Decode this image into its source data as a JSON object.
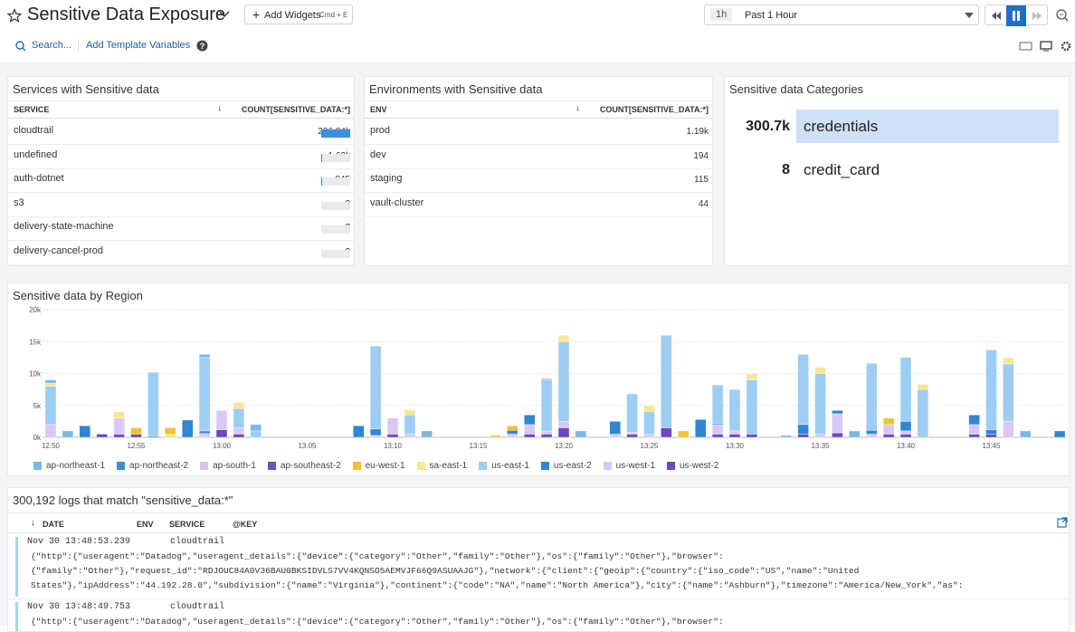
{
  "header": {
    "title": "Sensitive Data Exposure",
    "add_widgets": "Add Widgets",
    "shortcut": "Cmd + E",
    "time_badge": "1h",
    "time_range": "Past 1 Hour"
  },
  "toolbar": {
    "search": "Search...",
    "template": "Add Template Variables"
  },
  "services": {
    "title": "Services with Sensitive data",
    "columns": [
      "SERVICE",
      "COUNT[SENSITIVE_DATA:*]"
    ],
    "bar_color": "#3d8fe0",
    "rows": [
      {
        "name": "cloudtrail",
        "count": 296840,
        "count_label": "296.84k"
      },
      {
        "name": "undefined",
        "count": 1620,
        "count_label": "1.62k"
      },
      {
        "name": "auth-dotnet",
        "count": 845
      },
      {
        "name": "s3",
        "count": 3
      },
      {
        "name": "delivery-state-machine",
        "count": 2
      },
      {
        "name": "delivery-cancel-prod",
        "count": 2
      }
    ]
  },
  "environments": {
    "title": "Environments with Sensitive data",
    "columns": [
      "ENV",
      "COUNT[SENSITIVE_DATA:*]"
    ],
    "rows": [
      {
        "name": "prod",
        "count": 1190,
        "count_label": "1.19k"
      },
      {
        "name": "dev",
        "count": 194
      },
      {
        "name": "staging",
        "count": 115
      },
      {
        "name": "vault-cluster",
        "count": 44
      }
    ]
  },
  "categories": {
    "title": "Sensitive data Categories",
    "rows": [
      {
        "name": "credentials",
        "count": 300700,
        "count_label": "300.7k"
      },
      {
        "name": "credit_card",
        "count": 8
      }
    ]
  },
  "region_chart": {
    "type": "bar",
    "stacked": true,
    "title": "Sensitive data by Region",
    "grid": true,
    "ylim": [
      0,
      20000
    ],
    "yticks": [
      {
        "value": 0,
        "label": "0k"
      },
      {
        "value": 5000,
        "label": "5k"
      },
      {
        "value": 10000,
        "label": "10k"
      },
      {
        "value": 15000,
        "label": "15k"
      },
      {
        "value": 20000,
        "label": "20k"
      }
    ],
    "categories": [
      "12:50",
      null,
      null,
      null,
      null,
      "12:55",
      null,
      null,
      null,
      null,
      "13:00",
      null,
      null,
      null,
      null,
      "13:05",
      null,
      null,
      null,
      null,
      "13:10",
      null,
      null,
      null,
      null,
      "13:15",
      null,
      null,
      null,
      null,
      "13:20",
      null,
      null,
      null,
      null,
      "13:25",
      null,
      null,
      null,
      null,
      "13:30",
      null,
      null,
      null,
      null,
      "13:35",
      null,
      null,
      null,
      null,
      "13:40",
      null,
      null,
      null,
      null,
      "13:45",
      null,
      null,
      null,
      null
    ],
    "series": [
      {
        "name": "ap-northeast-1",
        "color": "#7cb6e8",
        "values": [
          500,
          1000,
          0,
          0,
          0,
          0,
          0,
          0,
          0,
          500,
          0,
          0,
          1000,
          0,
          0,
          0,
          0,
          0,
          0,
          0,
          0,
          0,
          1000,
          0,
          0,
          0,
          0,
          0,
          0,
          200,
          0,
          1000,
          0,
          0,
          0,
          0,
          0,
          0,
          0,
          0,
          0,
          0,
          0,
          300,
          0,
          0,
          0,
          1000,
          0,
          0,
          0,
          0,
          0,
          0,
          0,
          0,
          0,
          1000,
          0,
          0
        ]
      },
      {
        "name": "ap-northeast-2",
        "color": "#3b8ed6",
        "values": [
          0,
          0,
          0,
          0,
          0,
          0,
          0,
          0,
          0,
          0,
          0,
          0,
          0,
          0,
          0,
          0,
          0,
          0,
          0,
          0,
          0,
          0,
          0,
          0,
          0,
          0,
          0,
          0,
          0,
          0,
          0,
          0,
          0,
          0,
          0,
          0,
          0,
          0,
          0,
          0,
          0,
          0,
          0,
          0,
          0,
          0,
          0,
          0,
          0,
          0,
          0,
          0,
          0,
          0,
          0,
          0,
          0,
          0,
          0,
          0
        ]
      },
      {
        "name": "ap-south-1",
        "color": "#d6c3f2",
        "values": [
          0,
          0,
          0,
          0,
          0,
          0,
          0,
          0,
          0,
          0,
          0,
          0,
          0,
          0,
          0,
          0,
          0,
          0,
          0,
          0,
          0,
          0,
          0,
          0,
          0,
          0,
          0,
          0,
          0,
          0,
          0,
          0,
          0,
          0,
          0,
          0,
          0,
          0,
          0,
          0,
          0,
          0,
          0,
          0,
          0,
          0,
          0,
          0,
          0,
          0,
          0,
          0,
          0,
          0,
          0,
          0,
          0,
          0,
          0,
          0
        ]
      },
      {
        "name": "ap-southeast-2",
        "color": "#7050c8",
        "values": [
          0,
          0,
          0,
          0,
          0,
          0,
          0,
          0,
          0,
          0,
          0,
          0,
          0,
          0,
          0,
          0,
          0,
          0,
          0,
          0,
          0,
          0,
          0,
          0,
          0,
          0,
          0,
          0,
          0,
          0,
          0,
          0,
          0,
          0,
          0,
          0,
          0,
          0,
          0,
          0,
          0,
          0,
          0,
          0,
          0,
          0,
          0,
          0,
          0,
          0,
          0,
          0,
          0,
          0,
          0,
          0,
          0,
          0,
          0,
          0
        ]
      },
      {
        "name": "eu-west-1",
        "color": "#f2c230",
        "values": [
          0,
          0,
          0,
          0,
          0,
          1000,
          0,
          1000,
          0,
          0,
          0,
          0,
          0,
          0,
          0,
          0,
          0,
          0,
          0,
          0,
          0,
          0,
          0,
          0,
          0,
          0,
          300,
          700,
          0,
          0,
          0,
          0,
          0,
          0,
          0,
          0,
          0,
          1000,
          0,
          0,
          0,
          0,
          0,
          0,
          0,
          0,
          0,
          0,
          0,
          1000,
          0,
          0,
          0,
          0,
          0,
          0,
          0,
          0,
          0,
          0
        ]
      },
      {
        "name": "sa-east-1",
        "color": "#f8e690",
        "values": [
          500,
          0,
          0,
          0,
          1000,
          0,
          0,
          500,
          0,
          0,
          0,
          1000,
          0,
          0,
          0,
          0,
          0,
          0,
          0,
          0,
          0,
          800,
          0,
          0,
          0,
          0,
          0,
          0,
          0,
          0,
          1000,
          0,
          0,
          0,
          0,
          1000,
          0,
          0,
          0,
          0,
          0,
          1000,
          0,
          0,
          0,
          1000,
          0,
          0,
          0,
          0,
          0,
          800,
          0,
          0,
          0,
          0,
          1000,
          0,
          0,
          0
        ]
      },
      {
        "name": "us-east-1",
        "color": "#9dcdf3",
        "values": [
          6000,
          0,
          0,
          0,
          0,
          0,
          10000,
          0,
          0,
          11500,
          0,
          3000,
          1000,
          0,
          0,
          0,
          0,
          0,
          0,
          13000,
          0,
          3000,
          0,
          0,
          0,
          0,
          0,
          0,
          0,
          8000,
          12500,
          0,
          0,
          0,
          6000,
          3500,
          14500,
          0,
          0,
          6000,
          6500,
          8500,
          0,
          0,
          11000,
          9500,
          0,
          0,
          10500,
          0,
          10000,
          7500,
          0,
          0,
          0,
          12500,
          9000,
          0,
          0,
          0
        ]
      },
      {
        "name": "us-east-2",
        "color": "#2f86d3",
        "values": [
          0,
          0,
          1800,
          0,
          0,
          0,
          200,
          0,
          2700,
          400,
          0,
          0,
          0,
          0,
          0,
          0,
          0,
          0,
          1800,
          1000,
          0,
          0,
          0,
          0,
          0,
          0,
          0,
          600,
          1500,
          0,
          0,
          0,
          0,
          2000,
          0,
          0,
          0,
          0,
          2800,
          200,
          0,
          0,
          0,
          0,
          1500,
          0,
          500,
          0,
          600,
          0,
          1500,
          0,
          0,
          0,
          1500,
          700,
          0,
          0,
          0,
          1000
        ]
      },
      {
        "name": "us-west-1",
        "color": "#d9c8f4",
        "values": [
          2000,
          0,
          0,
          0,
          2500,
          0,
          0,
          0,
          0,
          600,
          3000,
          1000,
          0,
          0,
          0,
          0,
          0,
          0,
          0,
          300,
          2500,
          500,
          0,
          0,
          0,
          0,
          0,
          500,
          1500,
          500,
          1000,
          0,
          0,
          500,
          300,
          500,
          0,
          0,
          0,
          1500,
          500,
          0,
          0,
          0,
          0,
          500,
          3000,
          0,
          500,
          1500,
          500,
          0,
          0,
          0,
          1500,
          0,
          2500,
          0,
          0,
          0
        ]
      },
      {
        "name": "us-west-2",
        "color": "#6a48c2",
        "values": [
          0,
          0,
          0,
          500,
          500,
          500,
          0,
          0,
          0,
          0,
          1200,
          500,
          0,
          0,
          0,
          0,
          0,
          0,
          0,
          0,
          500,
          0,
          0,
          0,
          0,
          0,
          0,
          0,
          500,
          500,
          1500,
          0,
          0,
          0,
          500,
          0,
          1500,
          0,
          0,
          500,
          500,
          500,
          0,
          0,
          500,
          0,
          700,
          0,
          0,
          500,
          500,
          0,
          0,
          0,
          500,
          500,
          0,
          0,
          0,
          0
        ]
      }
    ]
  },
  "logs": {
    "title": "300,192 logs that match \"sensitive_data:*\"",
    "columns": [
      "DATE",
      "ENV",
      "SERVICE",
      "@KEY"
    ],
    "entries": [
      {
        "date": "Nov 30 13:48:53.239",
        "service": "cloudtrail",
        "lines": [
          "{\"http\":{\"useragent\":\"Datadog\",\"useragent_details\":{\"device\":{\"category\":\"Other\",\"family\":\"Other\"},\"os\":{\"family\":\"Other\"},\"browser\":",
          "{\"family\":\"Other\"},\"request_id\":\"RDJOUC84A0V36BAU0BKSIDVLS7VV4KQNSO5AEMVJF66Q9ASUAAJG\"},\"network\":{\"client\":{\"geoip\":{\"country\":{\"iso_code\":\"US\",\"name\":\"United",
          "States\"},\"ipAddress\":\"44.192.28.0\",\"subdivision\":{\"name\":\"Virginia\"},\"continent\":{\"code\":\"NA\",\"name\":\"North America\"},\"city\":{\"name\":\"Ashburn\"},\"timezone\":\"America/New_York\",\"as\":"
        ]
      },
      {
        "date": "Nov 30 13:48:49.753",
        "service": "cloudtrail",
        "lines": [
          "{\"http\":{\"useragent\":\"Datadog\",\"useragent_details\":{\"device\":{\"category\":\"Other\",\"family\":\"Other\"},\"os\":{\"family\":\"Other\"},\"browser\":"
        ]
      }
    ]
  }
}
